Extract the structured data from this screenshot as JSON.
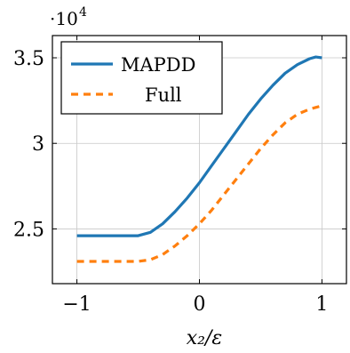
{
  "chart_data": {
    "type": "line",
    "xlabel": "x₂/ε",
    "ylabel": "",
    "y_multiplier": "·10",
    "y_multiplier_exp": "4",
    "xlim": [
      -1.2,
      1.2
    ],
    "ylim": [
      2.18,
      3.63
    ],
    "xticks": [
      -1,
      0,
      1
    ],
    "xtick_labels": [
      "−1",
      "0",
      "1"
    ],
    "yticks": [
      2.5,
      3,
      3.5
    ],
    "ytick_labels": [
      "2.5",
      "3",
      "3.5"
    ],
    "grid": true,
    "legend_position": "top-left",
    "series": [
      {
        "name": "MAPDD",
        "color": "#1f77b4",
        "style": "solid",
        "x": [
          -1,
          -0.8,
          -0.6,
          -0.5,
          -0.4,
          -0.3,
          -0.2,
          -0.1,
          0,
          0.1,
          0.2,
          0.3,
          0.4,
          0.5,
          0.6,
          0.7,
          0.8,
          0.9,
          0.95,
          1
        ],
        "y": [
          2.46,
          2.46,
          2.46,
          2.46,
          2.48,
          2.53,
          2.6,
          2.68,
          2.77,
          2.87,
          2.97,
          3.07,
          3.17,
          3.26,
          3.34,
          3.41,
          3.46,
          3.495,
          3.505,
          3.5
        ]
      },
      {
        "name": "Full",
        "color": "#ff7f0e",
        "style": "dashed",
        "x": [
          -1,
          -0.8,
          -0.6,
          -0.5,
          -0.4,
          -0.3,
          -0.2,
          -0.1,
          0,
          0.1,
          0.2,
          0.3,
          0.4,
          0.5,
          0.6,
          0.7,
          0.8,
          0.9,
          0.95,
          1
        ],
        "y": [
          2.31,
          2.31,
          2.31,
          2.31,
          2.32,
          2.35,
          2.4,
          2.46,
          2.53,
          2.61,
          2.7,
          2.79,
          2.88,
          2.97,
          3.05,
          3.12,
          3.17,
          3.2,
          3.21,
          3.22
        ]
      }
    ]
  }
}
